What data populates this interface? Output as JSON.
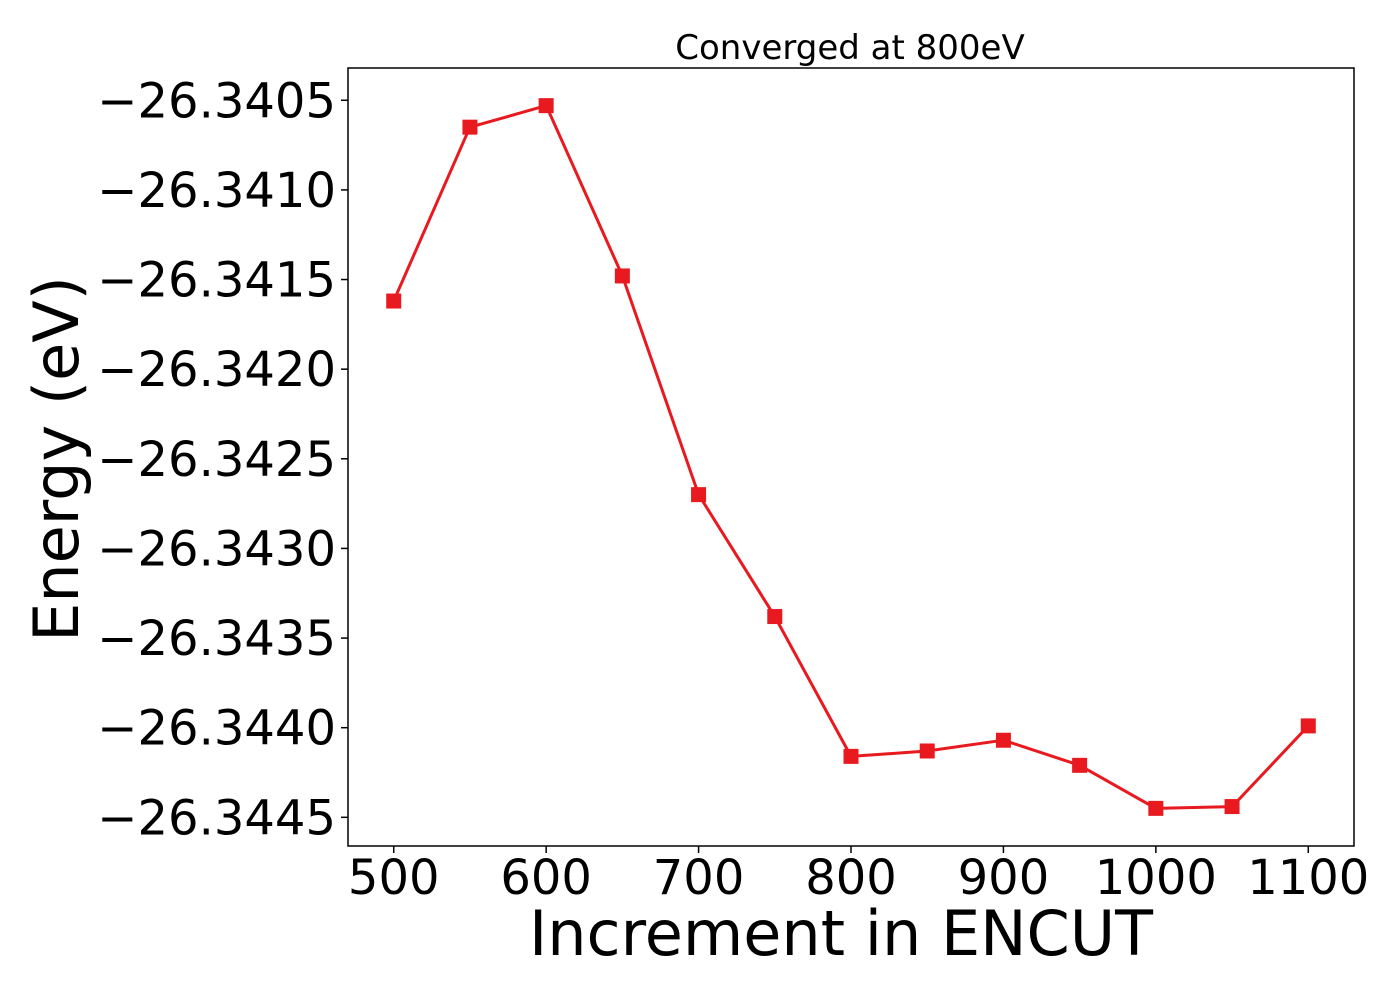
{
  "chart_data": {
    "type": "line",
    "title": "Converged at 800eV",
    "xlabel": "Increment in ENCUT",
    "ylabel": "Energy (eV)",
    "xlim": [
      470,
      1130
    ],
    "ylim": [
      -26.34466,
      -26.34032
    ],
    "xticks": [
      500,
      600,
      700,
      800,
      900,
      1000,
      1100
    ],
    "yticks": [
      -26.3405,
      -26.341,
      -26.3415,
      -26.342,
      -26.3425,
      -26.343,
      -26.3435,
      -26.344,
      -26.3445
    ],
    "yticklabels": [
      "−26.3405",
      "−26.3410",
      "−26.3415",
      "−26.3420",
      "−26.3425",
      "−26.3430",
      "−26.3435",
      "−26.3440",
      "−26.3445"
    ],
    "grid": false,
    "marker": "square",
    "series": [
      {
        "color": "#e8191f",
        "x": [
          500,
          550,
          600,
          650,
          700,
          750,
          800,
          850,
          900,
          950,
          1000,
          1050,
          1100
        ],
        "y": [
          -26.34162,
          -26.34065,
          -26.34053,
          -26.34148,
          -26.3427,
          -26.34338,
          -26.34416,
          -26.34413,
          -26.34407,
          -26.34421,
          -26.34445,
          -26.34444,
          -26.34399
        ]
      }
    ]
  }
}
